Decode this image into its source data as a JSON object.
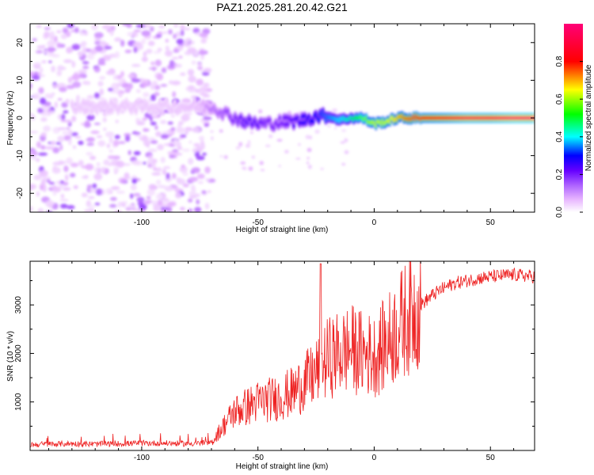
{
  "title": "PAZ1.2025.281.20.42.G21",
  "chart_data": [
    {
      "type": "heatmap",
      "title": "PAZ1.2025.281.20.42.G21",
      "xlabel": "Height of straight line (km)",
      "ylabel": "Frequency (Hz)",
      "xlim": [
        -148,
        69
      ],
      "ylim": [
        -25,
        25
      ],
      "xticks": [
        -100,
        -50,
        0,
        50
      ],
      "xtick_labels": [
        "-100",
        "-50",
        "0",
        "50"
      ],
      "yticks": [
        20,
        10,
        0,
        -10,
        -20
      ],
      "ytick_labels": [
        "20",
        "10",
        "0",
        "-10",
        "-20"
      ],
      "colorbar": {
        "label": "Normalized spectral amplitude",
        "range": [
          0,
          1
        ],
        "ticks": [
          0.0,
          0.2,
          0.4,
          0.6,
          0.8
        ],
        "tick_labels": [
          "0.0",
          "0.2",
          "0.4",
          "0.6",
          "0.8"
        ],
        "colormap": [
          "#ffffff",
          "#e6b3ff",
          "#b066ff",
          "#6600ff",
          "#0000ff",
          "#00ffff",
          "#00ff00",
          "#ffff00",
          "#ff0000",
          "#ff00aa"
        ]
      },
      "noise_region_x": [
        -148,
        -70
      ],
      "ridge": {
        "x": [
          -130,
          -110,
          -90,
          -75,
          -70,
          -65,
          -60,
          -55,
          -50,
          -45,
          -40,
          -35,
          -30,
          -25,
          -20,
          -15,
          -10,
          -5,
          0,
          5,
          10,
          15,
          20,
          30,
          40,
          50,
          60,
          69
        ],
        "freq": [
          3,
          3,
          3,
          3,
          3,
          1.5,
          0,
          -1,
          -1.5,
          -1.5,
          -1,
          -1,
          -0.5,
          0.5,
          0.5,
          -0.5,
          0,
          0,
          -1.5,
          -1,
          0,
          0,
          0,
          0,
          0,
          0,
          0,
          0
        ],
        "amplitude": [
          0.08,
          0.08,
          0.08,
          0.1,
          0.2,
          0.25,
          0.3,
          0.35,
          0.35,
          0.3,
          0.3,
          0.35,
          0.4,
          0.45,
          0.5,
          0.55,
          0.6,
          0.7,
          0.75,
          0.75,
          0.8,
          0.85,
          0.9,
          0.92,
          0.95,
          0.95,
          0.97,
          0.97
        ]
      }
    },
    {
      "type": "line",
      "xlabel": "Height of straight line (km)",
      "ylabel": "SNR (10 * v/v)",
      "xlim": [
        -148,
        69
      ],
      "ylim": [
        0,
        3900
      ],
      "xticks": [
        -100,
        -50,
        0,
        50
      ],
      "xtick_labels": [
        "-100",
        "-50",
        "0",
        "50"
      ],
      "yticks": [
        1000,
        2000,
        3000
      ],
      "ytick_labels": [
        "1000",
        "2000",
        "3000"
      ],
      "color": "#ee2222",
      "x": [
        -148,
        -140,
        -130,
        -120,
        -110,
        -100,
        -90,
        -80,
        -75,
        -70,
        -68,
        -65,
        -60,
        -55,
        -50,
        -45,
        -40,
        -35,
        -30,
        -27,
        -25,
        -23,
        -20,
        -15,
        -10,
        -5,
        0,
        5,
        10,
        15,
        20,
        25,
        30,
        35,
        40,
        45,
        50,
        55,
        60,
        65,
        69
      ],
      "values": [
        120,
        130,
        140,
        130,
        140,
        150,
        150,
        140,
        150,
        150,
        300,
        500,
        800,
        900,
        1000,
        1050,
        1100,
        1200,
        1400,
        1500,
        1600,
        1700,
        1900,
        2000,
        2100,
        2000,
        1950,
        2200,
        2500,
        2800,
        3000,
        3200,
        3350,
        3450,
        3500,
        3550,
        3580,
        3600,
        3620,
        3600,
        3580
      ],
      "annotation": {
        "x": -23,
        "value": 3850
      }
    }
  ]
}
